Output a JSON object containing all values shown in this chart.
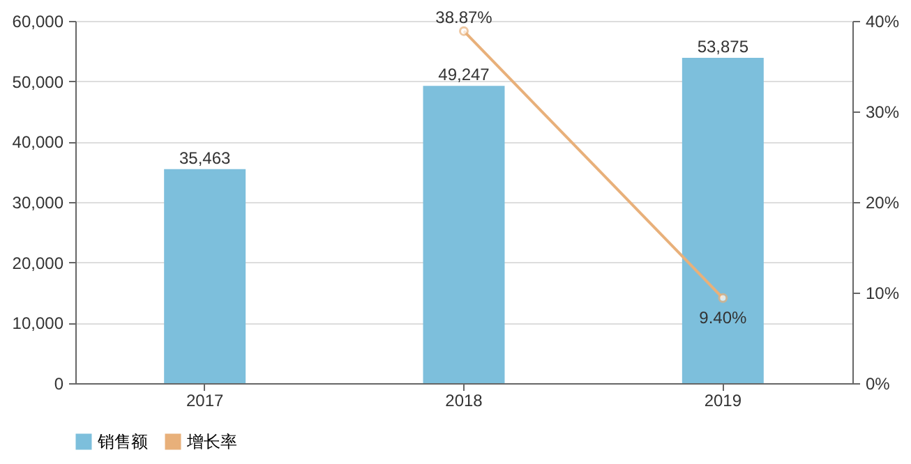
{
  "chart_data": {
    "type": "bar",
    "categories": [
      "2017",
      "2018",
      "2019"
    ],
    "series": [
      {
        "name": "销售额",
        "color": "#7dbfdc",
        "values": [
          35463,
          49247,
          53875
        ],
        "value_labels": [
          "35,463",
          "49,247",
          "53,875"
        ]
      },
      {
        "name": "增长率",
        "type": "line",
        "axis": "y2",
        "color": "#e8b07a",
        "values": [
          null,
          38.87,
          9.4
        ],
        "value_labels": [
          null,
          "38.87%",
          "9.40%"
        ]
      }
    ],
    "ylim": [
      0,
      60000
    ],
    "yticks": [
      0,
      {
        "value": 10000,
        "label": "10,000"
      },
      {
        "value": 20000,
        "label": "20,000"
      },
      {
        "value": 30000,
        "label": "30,000"
      },
      {
        "value": 40000,
        "label": "40,000"
      },
      {
        "value": 50000,
        "label": "50,000"
      },
      {
        "value": 60000,
        "label": "60,000"
      }
    ],
    "y2lim": [
      0,
      40
    ],
    "y2ticks": [
      {
        "value": 0,
        "label": "0%"
      },
      {
        "value": 10,
        "label": "10%"
      },
      {
        "value": 20,
        "label": "20%"
      },
      {
        "value": 30,
        "label": "30%"
      },
      {
        "value": 40,
        "label": "40%"
      }
    ],
    "grid": "y",
    "legend": "bottom",
    "marker": "circle",
    "line_style": "solid"
  }
}
